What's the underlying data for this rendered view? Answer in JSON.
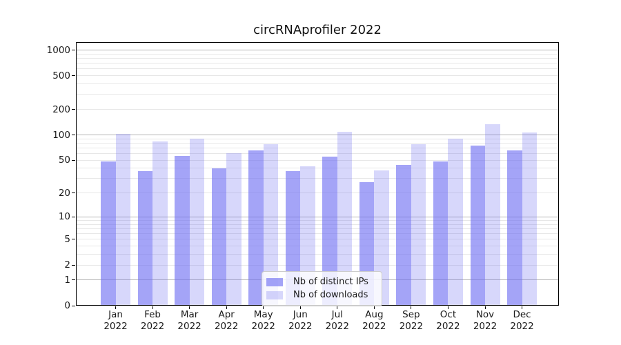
{
  "chart_data": {
    "type": "bar",
    "title": "circRNAprofiler 2022",
    "yscale": "log1p",
    "ylim": [
      0,
      1240
    ],
    "yticks": [
      0,
      1,
      2,
      5,
      10,
      20,
      50,
      100,
      200,
      500,
      1000
    ],
    "major_gridlines": [
      1,
      10,
      100,
      1000
    ],
    "minor_gridlines": [
      2,
      3,
      4,
      5,
      6,
      7,
      8,
      9,
      20,
      30,
      40,
      50,
      60,
      70,
      80,
      90,
      200,
      300,
      400,
      500,
      600,
      700,
      800,
      900
    ],
    "categories": [
      "Jan",
      "Feb",
      "Mar",
      "Apr",
      "May",
      "Jun",
      "Jul",
      "Aug",
      "Sep",
      "Oct",
      "Nov",
      "Dec"
    ],
    "year_label": "2022",
    "series": [
      {
        "name": "Nb of distinct IPs",
        "color": "rgba(108,108,242,0.62)",
        "values": [
          48,
          37,
          56,
          40,
          65,
          37,
          55,
          27,
          44,
          48,
          74,
          66
        ]
      },
      {
        "name": "Nb of downloads",
        "color": "rgba(108,108,242,0.27)",
        "values": [
          102,
          83,
          91,
          61,
          77,
          42,
          108,
          38,
          78,
          91,
          135,
          106
        ]
      }
    ],
    "legend": {
      "position": "lower center"
    },
    "grid": "on",
    "colors": {
      "major_grid": "#b3b3b3",
      "minor_grid": "#e7e7e7",
      "spine": "#000000"
    }
  }
}
